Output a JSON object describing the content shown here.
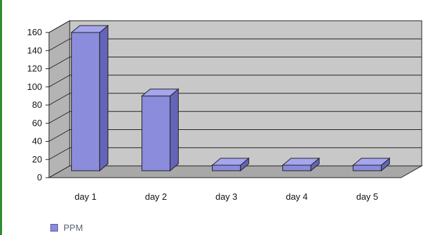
{
  "chart_data": {
    "type": "bar",
    "categories": [
      "day 1",
      "day 2",
      "day 3",
      "day 4",
      "day 5"
    ],
    "series": [
      {
        "name": "PPM",
        "values": [
          160,
          90,
          5,
          5,
          5
        ],
        "color": "#8c8cdd"
      }
    ],
    "ylim": [
      0,
      160
    ],
    "y_ticks": [
      "0",
      "20",
      "40",
      "60",
      "80",
      "100",
      "120",
      "140",
      "160"
    ],
    "grid": true,
    "legend": "bottom-left",
    "wall_color": "#c8c8c8",
    "floor_color": "#a8a8a8"
  }
}
